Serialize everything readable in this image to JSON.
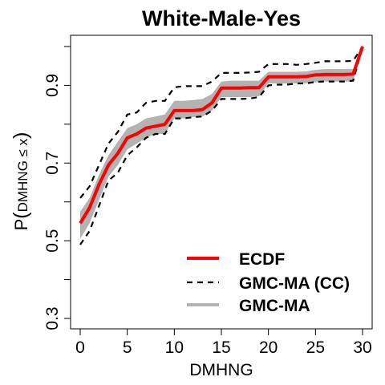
{
  "chart_data": {
    "type": "line",
    "title": "White-Male-Yes",
    "xlabel": "DMHNG",
    "ylabel_main": "P",
    "ylabel_sub": "DMHNG ≤ x",
    "xlim": [
      0,
      30
    ],
    "ylim": [
      0.3,
      1.0
    ],
    "xticks": [
      "0",
      "5",
      "10",
      "15",
      "20",
      "25",
      "30"
    ],
    "yticks": [
      "0.3",
      "0.5",
      "0.7",
      "0.9"
    ],
    "x": [
      0,
      1,
      2,
      3,
      4,
      5,
      6,
      7,
      8,
      9,
      10,
      11,
      12,
      13,
      14,
      15,
      16,
      17,
      18,
      19,
      20,
      21,
      22,
      23,
      24,
      25,
      26,
      27,
      28,
      29,
      30
    ],
    "series": [
      {
        "name": "ECDF",
        "color": "#ff0000",
        "style": "solid-thick",
        "values": [
          0.545,
          0.585,
          0.645,
          0.695,
          0.725,
          0.765,
          0.775,
          0.79,
          0.795,
          0.8,
          0.835,
          0.835,
          0.835,
          0.838,
          0.855,
          0.893,
          0.893,
          0.893,
          0.894,
          0.894,
          0.922,
          0.922,
          0.922,
          0.922,
          0.923,
          0.927,
          0.928,
          0.928,
          0.928,
          0.929,
          1.0
        ]
      },
      {
        "name": "GMC-MA (CC)",
        "color": "#000000",
        "style": "dashed",
        "upper": [
          0.61,
          0.64,
          0.695,
          0.75,
          0.78,
          0.825,
          0.83,
          0.855,
          0.86,
          0.86,
          0.895,
          0.898,
          0.898,
          0.898,
          0.91,
          0.932,
          0.932,
          0.932,
          0.933,
          0.935,
          0.955,
          0.955,
          0.955,
          0.953,
          0.955,
          0.958,
          0.962,
          0.962,
          0.962,
          0.963,
          1.0
        ],
        "lower": [
          0.49,
          0.525,
          0.59,
          0.655,
          0.675,
          0.72,
          0.74,
          0.765,
          0.775,
          0.775,
          0.815,
          0.815,
          0.818,
          0.82,
          0.835,
          0.865,
          0.865,
          0.865,
          0.866,
          0.87,
          0.9,
          0.902,
          0.902,
          0.905,
          0.905,
          0.909,
          0.91,
          0.91,
          0.91,
          0.912,
          1.0
        ]
      },
      {
        "name": "GMC-MA",
        "color": "#b3b3b3",
        "style": "band",
        "upper": [
          0.575,
          0.61,
          0.67,
          0.72,
          0.755,
          0.79,
          0.8,
          0.815,
          0.82,
          0.825,
          0.86,
          0.86,
          0.862,
          0.865,
          0.878,
          0.91,
          0.912,
          0.912,
          0.912,
          0.912,
          0.935,
          0.935,
          0.935,
          0.935,
          0.936,
          0.94,
          0.942,
          0.942,
          0.942,
          0.942,
          1.0
        ],
        "lower": [
          0.505,
          0.545,
          0.605,
          0.665,
          0.695,
          0.735,
          0.75,
          0.765,
          0.775,
          0.775,
          0.815,
          0.815,
          0.818,
          0.82,
          0.835,
          0.87,
          0.87,
          0.87,
          0.87,
          0.872,
          0.905,
          0.905,
          0.905,
          0.905,
          0.905,
          0.908,
          0.91,
          0.91,
          0.91,
          0.91,
          1.0
        ]
      }
    ],
    "legend": {
      "position": "bottom-right",
      "entries": [
        "ECDF",
        "GMC-MA (CC)",
        "GMC-MA"
      ]
    },
    "grid": false
  }
}
